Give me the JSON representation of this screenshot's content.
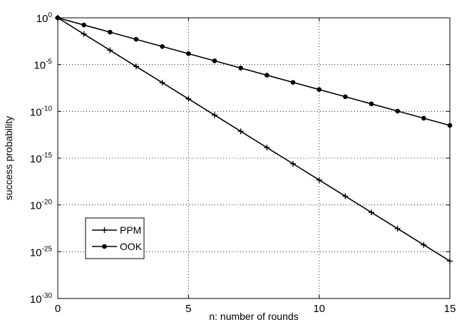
{
  "chart_data": {
    "type": "line",
    "title": "",
    "xlabel": "n: number of rounds",
    "ylabel": "success probability",
    "x": [
      0,
      1,
      2,
      3,
      4,
      5,
      6,
      7,
      8,
      9,
      10,
      11,
      12,
      13,
      14,
      15
    ],
    "xlim": [
      0,
      15
    ],
    "x_ticks": [
      0,
      5,
      10,
      15
    ],
    "y_scale": "log",
    "ylim_exponent": [
      -30,
      0
    ],
    "y_tick_exponents": [
      0,
      -5,
      -10,
      -15,
      -20,
      -25,
      -30
    ],
    "y_tick_base": "10",
    "grid": true,
    "legend_position": "lower-left",
    "series": [
      {
        "name": "PPM",
        "marker": "plus",
        "color": "#000000",
        "log10_values": [
          0,
          -1.733,
          -3.467,
          -5.2,
          -6.933,
          -8.667,
          -10.4,
          -12.133,
          -13.867,
          -15.6,
          -17.333,
          -19.067,
          -20.8,
          -22.533,
          -24.267,
          -26.0
        ]
      },
      {
        "name": "OOK",
        "marker": "circle",
        "color": "#000000",
        "log10_values": [
          0,
          -0.767,
          -1.533,
          -2.3,
          -3.067,
          -3.833,
          -4.6,
          -5.367,
          -6.133,
          -6.9,
          -7.667,
          -8.433,
          -9.2,
          -9.967,
          -10.733,
          -11.5
        ]
      }
    ]
  }
}
